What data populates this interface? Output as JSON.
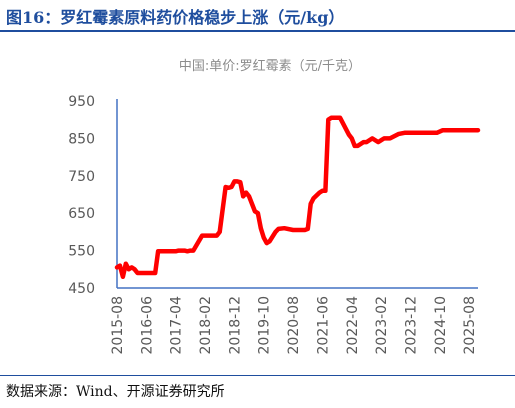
{
  "figure": {
    "title": "图16：罗红霉素原料药价格稳步上涨（元/kg）",
    "source": "数据来源：Wind、开源证券研究所"
  },
  "colors": {
    "title": "#1f4e9e",
    "series": "#ff0000",
    "axis": "#4472c4",
    "text": "#595959"
  },
  "chart_data": {
    "type": "line",
    "title": "中国:单价:罗红霉素（元/千克）",
    "xlabel": "",
    "ylabel": "",
    "ylim": [
      450,
      950
    ],
    "yticks": [
      450,
      550,
      650,
      750,
      850,
      950
    ],
    "xlim": [
      "2015-08",
      "2025-11"
    ],
    "xticks": [
      "2015-08",
      "2016-06",
      "2017-04",
      "2018-02",
      "2018-12",
      "2019-10",
      "2020-08",
      "2021-06",
      "2022-04",
      "2023-02",
      "2023-12",
      "2024-10",
      "2025-08"
    ],
    "grid": false,
    "legend": "none",
    "series": [
      {
        "color": "#ff0000",
        "x": [
          "2015-08",
          "2015-09",
          "2015-10",
          "2015-11",
          "2015-12",
          "2016-01",
          "2016-02",
          "2016-03",
          "2016-04",
          "2016-06",
          "2016-09",
          "2016-10",
          "2017-01",
          "2017-04",
          "2017-05",
          "2017-07",
          "2017-08",
          "2017-09",
          "2017-10",
          "2018-01",
          "2018-03",
          "2018-04",
          "2018-06",
          "2018-07",
          "2018-09",
          "2018-10",
          "2018-11",
          "2018-12",
          "2019-01",
          "2019-02",
          "2019-03",
          "2019-04",
          "2019-05",
          "2019-07",
          "2019-08",
          "2019-09",
          "2019-10",
          "2019-11",
          "2019-12",
          "2020-02",
          "2020-03",
          "2020-05",
          "2020-08",
          "2020-10",
          "2020-11",
          "2020-12",
          "2021-01",
          "2021-02",
          "2021-03",
          "2021-05",
          "2021-06",
          "2021-07",
          "2021-08",
          "2021-09",
          "2021-11",
          "2021-12",
          "2022-03",
          "2022-04",
          "2022-05",
          "2022-06",
          "2022-08",
          "2022-09",
          "2022-11",
          "2023-01",
          "2023-03",
          "2023-05",
          "2023-08",
          "2023-10",
          "2023-12",
          "2024-06",
          "2024-09",
          "2024-11",
          "2025-06",
          "2025-11"
        ],
        "values": [
          505,
          510,
          480,
          515,
          500,
          505,
          500,
          490,
          490,
          490,
          490,
          548,
          548,
          548,
          550,
          550,
          548,
          550,
          550,
          590,
          590,
          590,
          590,
          600,
          720,
          718,
          720,
          735,
          735,
          733,
          695,
          705,
          695,
          655,
          650,
          610,
          585,
          570,
          575,
          600,
          608,
          610,
          605,
          605,
          605,
          605,
          608,
          675,
          690,
          705,
          710,
          710,
          900,
          905,
          905,
          905,
          860,
          850,
          830,
          830,
          840,
          840,
          850,
          840,
          850,
          850,
          862,
          865,
          865,
          865,
          865,
          872,
          872,
          872
        ]
      }
    ]
  }
}
